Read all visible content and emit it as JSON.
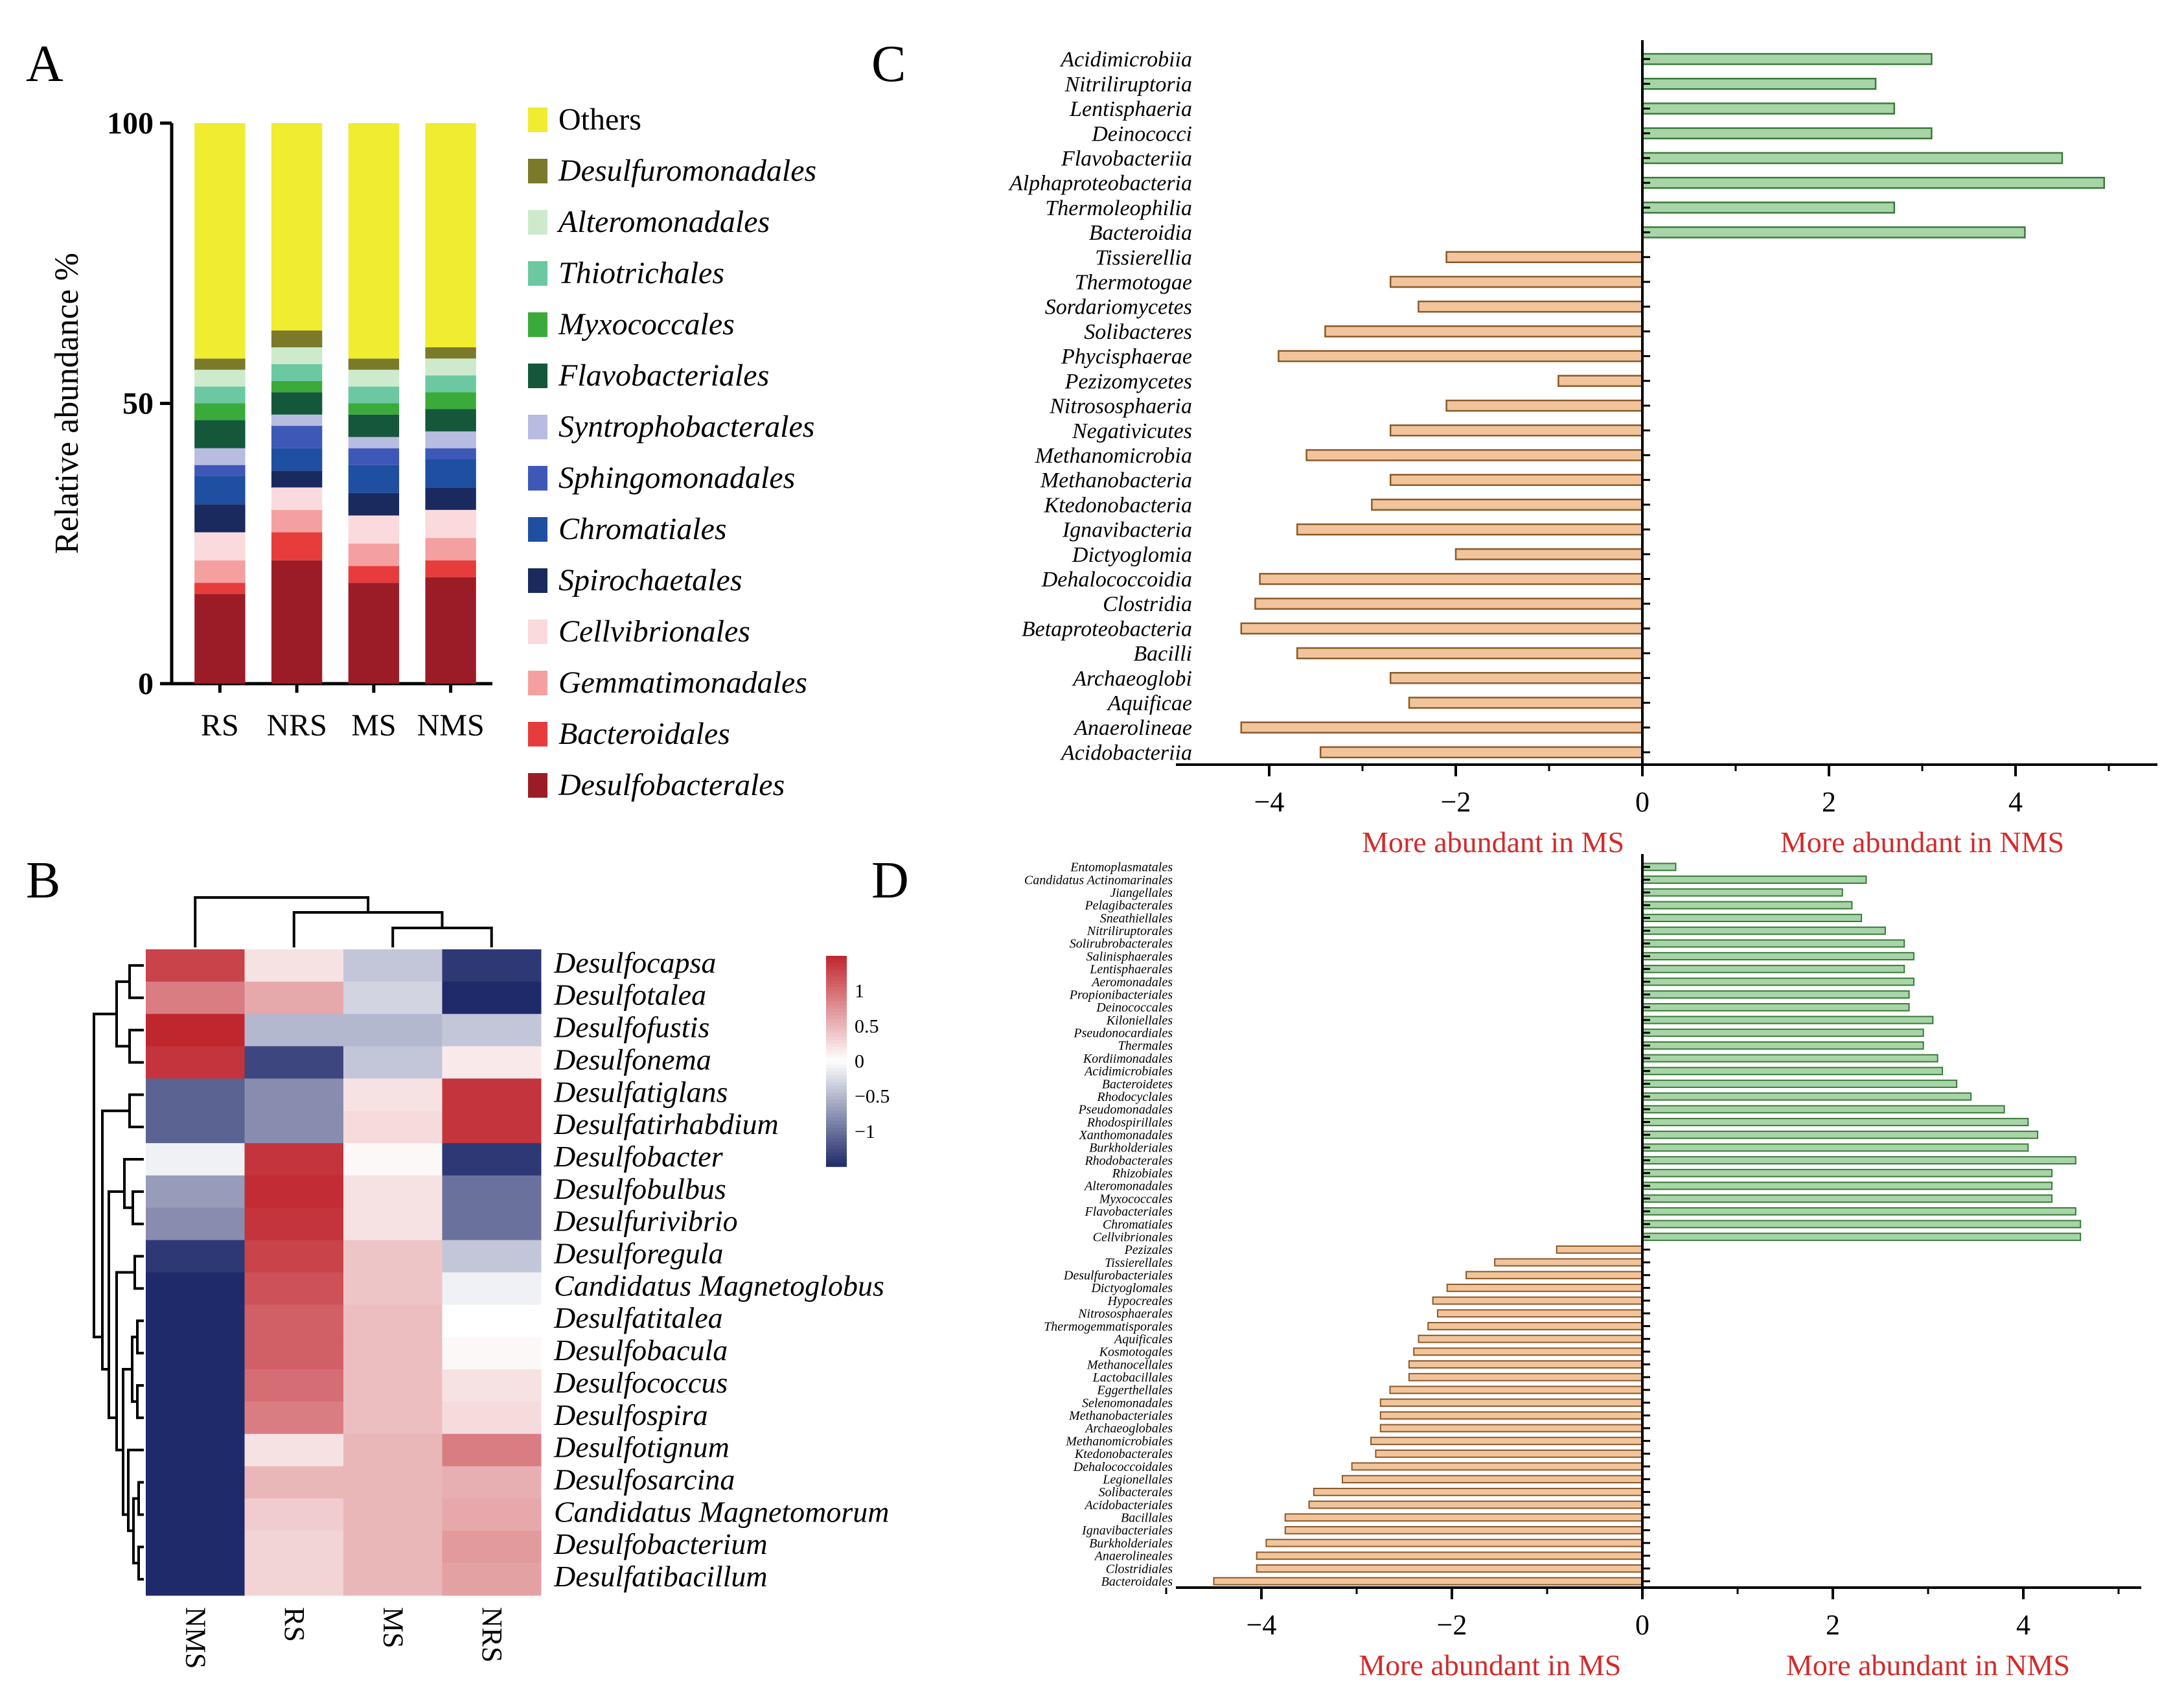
{
  "panel_labels": {
    "A": "A",
    "B": "B",
    "C": "C",
    "D": "D"
  },
  "colors": {
    "green_bar": "#a8d5a8",
    "green_edge": "#3a7a3a",
    "orange_bar": "#f2c49b",
    "orange_edge": "#8a5a2a",
    "red_text": "#d42a2a",
    "heat_low": "#1f2a6b",
    "heat_mid": "#ffffff",
    "heat_high": "#c0262e"
  },
  "chart_data": [
    {
      "id": "A",
      "type": "bar",
      "stacked": true,
      "title": "",
      "xlabel": "",
      "ylabel": "Relative abundance %",
      "ylim": [
        0,
        100
      ],
      "yticks": [
        "0",
        "50",
        "100"
      ],
      "categories": [
        "RS",
        "NRS",
        "MS",
        "NMS"
      ],
      "legend_position": "right",
      "series": [
        {
          "name": "Desulfobacterales",
          "color": "#9b1c26",
          "values": [
            16,
            22,
            18,
            19
          ]
        },
        {
          "name": "Bacteroidales",
          "color": "#e63c3c",
          "values": [
            2,
            5,
            3,
            3
          ]
        },
        {
          "name": "Gemmatimonadales",
          "color": "#f4a0a0",
          "values": [
            4,
            4,
            4,
            4
          ]
        },
        {
          "name": "Cellvibrionales",
          "color": "#fadadd",
          "values": [
            5,
            4,
            5,
            5
          ]
        },
        {
          "name": "Spirochaetales",
          "color": "#1a2a5e",
          "values": [
            5,
            3,
            4,
            4
          ]
        },
        {
          "name": "Chromatiales",
          "color": "#1e4fa0",
          "values": [
            5,
            4,
            5,
            5
          ]
        },
        {
          "name": "Sphingomonadales",
          "color": "#3e58b8",
          "values": [
            2,
            4,
            3,
            2
          ]
        },
        {
          "name": "Syntrophobacterales",
          "color": "#b8bce0",
          "values": [
            3,
            2,
            2,
            3
          ]
        },
        {
          "name": "Flavobacteriales",
          "color": "#14573a",
          "values": [
            5,
            4,
            4,
            4
          ]
        },
        {
          "name": "Myxococcales",
          "color": "#3aaa3a",
          "values": [
            3,
            2,
            2,
            3
          ]
        },
        {
          "name": "Thiotrichales",
          "color": "#6cc8a0",
          "values": [
            3,
            3,
            3,
            3
          ]
        },
        {
          "name": "Alteromonadales",
          "color": "#cdeacd",
          "values": [
            3,
            3,
            3,
            3
          ]
        },
        {
          "name": "Desulfuromonadales",
          "color": "#7a7a2a",
          "values": [
            2,
            3,
            2,
            2
          ]
        },
        {
          "name": "Others",
          "color": "#f0ec30",
          "values": [
            42,
            37,
            42,
            40
          ]
        }
      ],
      "legend_order": [
        "Others",
        "Desulfuromonadales",
        "Alteromonadales",
        "Thiotrichales",
        "Myxococcales",
        "Flavobacteriales",
        "Syntrophobacterales",
        "Sphingomonadales",
        "Chromatiales",
        "Spirochaetales",
        "Cellvibrionales",
        "Gemmatimonadales",
        "Bacteroidales",
        "Desulfobacterales"
      ]
    },
    {
      "id": "B",
      "type": "heatmap",
      "title": "",
      "columns": [
        "NMS",
        "RS",
        "MS",
        "NRS"
      ],
      "rows": [
        "Desulfocapsa",
        "Desulfotalea",
        "Desulfofustis",
        "Desulfonema",
        "Desulfatiglans",
        "Desulfatirhabdium",
        "Desulfobacter",
        "Desulfobulbus",
        "Desulfurivibrio",
        "Desulforegula",
        "Candidatus Magnetoglobus",
        "Desulfatitalea",
        "Desulfobacula",
        "Desulfococcus",
        "Desulfospira",
        "Desulfotignum",
        "Desulfosarcina",
        "Candidatus Magnetomorum",
        "Desulfobacterium",
        "Desulfatibacillum"
      ],
      "values": [
        [
          1.3,
          0.2,
          -0.4,
          -1.4
        ],
        [
          0.9,
          0.6,
          -0.3,
          -1.5
        ],
        [
          1.5,
          -0.5,
          -0.5,
          -0.4
        ],
        [
          1.4,
          -1.3,
          -0.4,
          0.15
        ],
        [
          -1.1,
          -0.8,
          0.2,
          1.4
        ],
        [
          -1.1,
          -0.8,
          0.25,
          1.4
        ],
        [
          -0.1,
          1.4,
          0.05,
          -1.4
        ],
        [
          -0.7,
          1.45,
          0.2,
          -1.0
        ],
        [
          -0.8,
          1.4,
          0.2,
          -1.0
        ],
        [
          -1.4,
          1.3,
          0.4,
          -0.4
        ],
        [
          -1.5,
          1.2,
          0.4,
          -0.1
        ],
        [
          -1.6,
          1.1,
          0.45,
          0.0
        ],
        [
          -1.6,
          1.1,
          0.45,
          0.05
        ],
        [
          -1.6,
          1.0,
          0.45,
          0.2
        ],
        [
          -1.6,
          0.9,
          0.45,
          0.25
        ],
        [
          -1.6,
          0.2,
          0.5,
          0.9
        ],
        [
          -1.6,
          0.5,
          0.5,
          0.55
        ],
        [
          -1.6,
          0.35,
          0.5,
          0.6
        ],
        [
          -1.6,
          0.3,
          0.5,
          0.7
        ],
        [
          -1.6,
          0.3,
          0.5,
          0.65
        ]
      ],
      "colorbar_ticks": [
        "1",
        "0.5",
        "0",
        "−0.5",
        "−1"
      ],
      "colorbar_values": [
        1,
        0.5,
        0,
        -0.5,
        -1
      ],
      "colorbar_range": [
        -1.5,
        1.5
      ]
    },
    {
      "id": "C",
      "type": "bar",
      "orientation": "horizontal",
      "title": "",
      "xlim": [
        -4.5,
        5.5
      ],
      "xticks": [
        -4,
        -2,
        0,
        2,
        4
      ],
      "xtick_labels": [
        "−4",
        "−2",
        "0",
        "2",
        "4"
      ],
      "left_label": "More abundant in MS",
      "right_label": "More abundant in NMS",
      "categories": [
        "Acidimicrobiia",
        "Nitriliruptoria",
        "Lentisphaeria",
        "Deinococci",
        "Flavobacteriia",
        "Alphaproteobacteria",
        "Thermoleophilia",
        "Bacteroidia",
        "Tissierellia",
        "Thermotogae",
        "Sordariomycetes",
        "Solibacteres",
        "Phycisphaerae",
        "Pezizomycetes",
        "Nitrososphaeria",
        "Negativicutes",
        "Methanomicrobia",
        "Methanobacteria",
        "Ktedonobacteria",
        "Ignavibacteria",
        "Dictyoglomia",
        "Dehalococcoidia",
        "Clostridia",
        "Betaproteobacteria",
        "Bacilli",
        "Archaeoglobi",
        "Aquificae",
        "Anaerolineae",
        "Acidobacteriia"
      ],
      "values": [
        3.1,
        2.5,
        2.7,
        3.1,
        4.5,
        4.95,
        2.7,
        4.1,
        -2.1,
        -2.7,
        -2.4,
        -3.4,
        -3.9,
        -0.9,
        -2.1,
        -2.7,
        -3.6,
        -2.7,
        -2.9,
        -3.7,
        -2.0,
        -4.1,
        -4.15,
        -4.3,
        -3.7,
        -2.7,
        -2.5,
        -4.3,
        -3.45
      ]
    },
    {
      "id": "D",
      "type": "bar",
      "orientation": "horizontal",
      "title": "",
      "xlim": [
        -5.0,
        5.3
      ],
      "xticks": [
        -4,
        -2,
        0,
        2,
        4
      ],
      "xtick_labels": [
        "−4",
        "−2",
        "0",
        "2",
        "4"
      ],
      "left_label": "More abundant in MS",
      "right_label": "More abundant in NMS",
      "categories": [
        "Entomoplasmatales",
        "Candidatus Actinomarinales",
        "Jiangellales",
        "Pelagibacterales",
        "Sneathiellales",
        "Nitriliruptorales",
        "Solirubrobacterales",
        "Salinisphaerales",
        "Lentisphaerales",
        "Aeromonadales",
        "Propionibacteriales",
        "Deinococcales",
        "Kiloniellales",
        "Pseudonocardiales",
        "Thermales",
        "Kordiimonadales",
        "Acidimicrobiales",
        "Bacteroidetes",
        "Rhodocyclales",
        "Pseudomonadales",
        "Rhodospirillales",
        "Xanthomonadales",
        "Burkholderiales",
        "Rhodobacterales",
        "Rhizobiales",
        "Alteromonadales",
        "Myxococcales",
        "Flavobacteriales",
        "Chromatiales",
        "Cellvibrionales",
        "Pezizales",
        "Tissierellales",
        "Desulfurobacteriales",
        "Dictyoglomales",
        "Hypocreales",
        "Nitrososphaerales",
        "Thermogemmatisporales",
        "Aquificales",
        "Kosmotogales",
        "Methanocellales",
        "Lactobacillales",
        "Eggerthellales",
        "Selenomonadales",
        "Methanobacteriales",
        "Archaeoglobales",
        "Methanomicrobiales",
        "Ktedonobacterales",
        "Dehalococcoidales",
        "Legionellales",
        "Solibacterales",
        "Acidobacteriales",
        "Bacillales",
        "Ignavibacteriales",
        "Burkholderiales",
        "Anaerolineales",
        "Clostridiales",
        "Bacteroidales"
      ],
      "values": [
        0.35,
        2.35,
        2.1,
        2.2,
        2.3,
        2.55,
        2.75,
        2.85,
        2.75,
        2.85,
        2.8,
        2.8,
        3.05,
        2.95,
        2.95,
        3.1,
        3.15,
        3.3,
        3.45,
        3.8,
        4.05,
        4.15,
        4.05,
        4.55,
        4.3,
        4.3,
        4.3,
        4.55,
        4.6,
        4.6,
        -0.9,
        -1.55,
        -1.85,
        -2.05,
        -2.2,
        -2.15,
        -2.25,
        -2.35,
        -2.4,
        -2.45,
        -2.45,
        -2.65,
        -2.75,
        -2.75,
        -2.75,
        -2.85,
        -2.8,
        -3.05,
        -3.15,
        -3.45,
        -3.5,
        -3.75,
        -3.75,
        -3.95,
        -4.05,
        -4.05,
        -4.5
      ]
    }
  ]
}
